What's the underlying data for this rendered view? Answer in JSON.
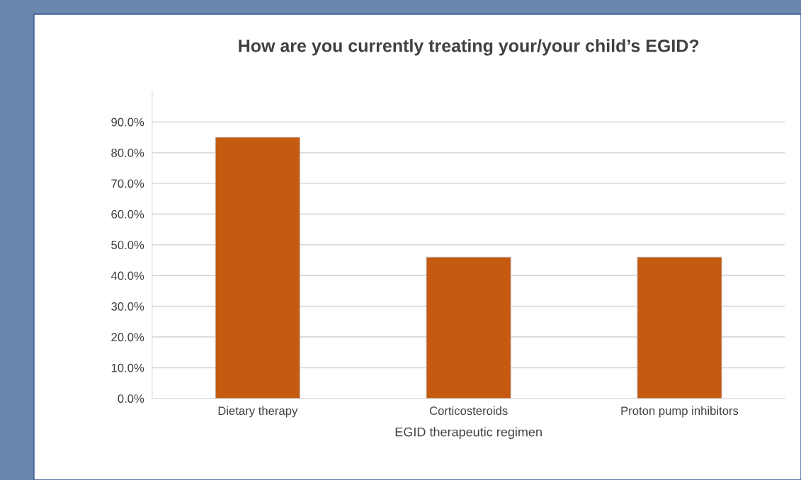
{
  "chart_data": {
    "type": "bar",
    "title": "How are you currently treating your/your child’s EGID?",
    "xlabel": "EGID therapeutic regimen",
    "categories": [
      "Dietary therapy",
      "Corticosteroids",
      "Proton pump inhibitors"
    ],
    "values": [
      85,
      46,
      46
    ],
    "color": "#c55a11",
    "ylim": [
      0,
      100
    ],
    "yticks": [
      {
        "value": 0,
        "label": "0.0%"
      },
      {
        "value": 10,
        "label": "10.0%"
      },
      {
        "value": 20,
        "label": "20.0%"
      },
      {
        "value": 30,
        "label": "30.0%"
      },
      {
        "value": 40,
        "label": "40.0%"
      },
      {
        "value": 50,
        "label": "50.0%"
      },
      {
        "value": 60,
        "label": "60.0%"
      },
      {
        "value": 70,
        "label": "70.0%"
      },
      {
        "value": 80,
        "label": "80.0%"
      },
      {
        "value": 90,
        "label": "90.0%"
      }
    ],
    "grid": "y"
  }
}
